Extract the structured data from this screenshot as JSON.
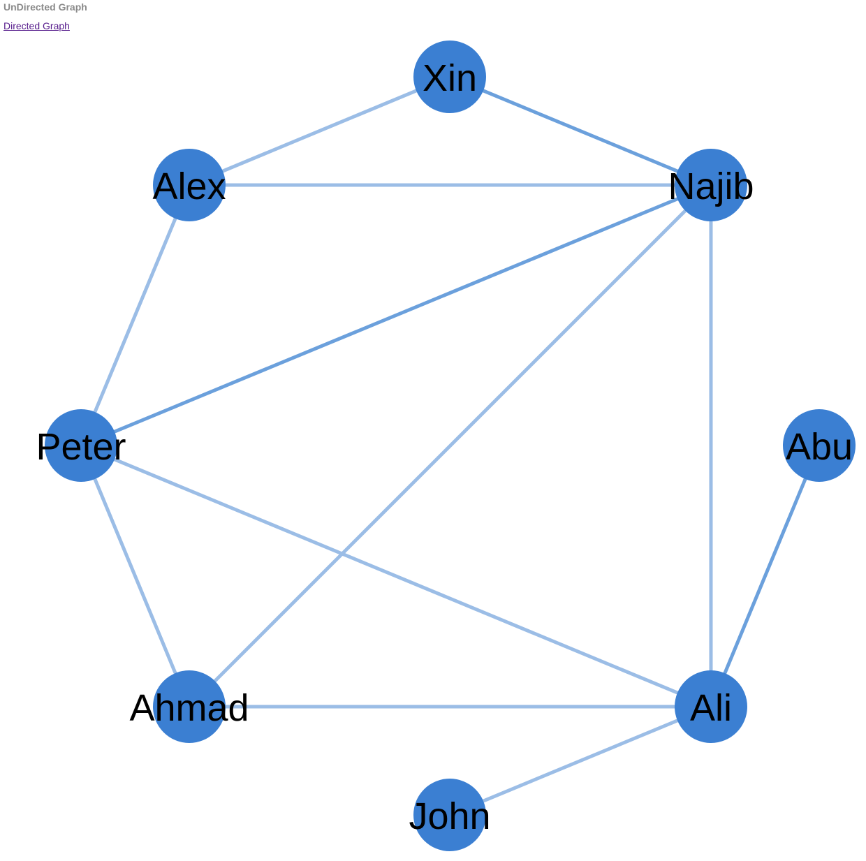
{
  "header": {
    "title": "UnDirected Graph",
    "link_label": "Directed Graph"
  },
  "colors": {
    "node": "#3b7fd2",
    "edge_light": "#9bbde6",
    "edge_dark": "#6ba0dc",
    "label": "#000000"
  },
  "graph": {
    "nodes": [
      {
        "id": "Xin",
        "label": "Xin"
      },
      {
        "id": "Alex",
        "label": "Alex"
      },
      {
        "id": "Najib",
        "label": "Najib"
      },
      {
        "id": "Peter",
        "label": "Peter"
      },
      {
        "id": "Abu",
        "label": "Abu"
      },
      {
        "id": "Ahmad",
        "label": "Ahmad"
      },
      {
        "id": "Ali",
        "label": "Ali"
      },
      {
        "id": "John",
        "label": "John"
      }
    ],
    "edges": [
      {
        "source": "Xin",
        "target": "Alex",
        "weight": "light"
      },
      {
        "source": "Xin",
        "target": "Najib",
        "weight": "dark"
      },
      {
        "source": "Alex",
        "target": "Najib",
        "weight": "light"
      },
      {
        "source": "Alex",
        "target": "Peter",
        "weight": "light"
      },
      {
        "source": "Najib",
        "target": "Peter",
        "weight": "dark"
      },
      {
        "source": "Najib",
        "target": "Ahmad",
        "weight": "light"
      },
      {
        "source": "Najib",
        "target": "Ali",
        "weight": "light"
      },
      {
        "source": "Peter",
        "target": "Ahmad",
        "weight": "light"
      },
      {
        "source": "Peter",
        "target": "Ali",
        "weight": "light"
      },
      {
        "source": "Abu",
        "target": "Ali",
        "weight": "dark"
      },
      {
        "source": "Ahmad",
        "target": "Ali",
        "weight": "light"
      },
      {
        "source": "Ali",
        "target": "John",
        "weight": "light"
      }
    ]
  }
}
